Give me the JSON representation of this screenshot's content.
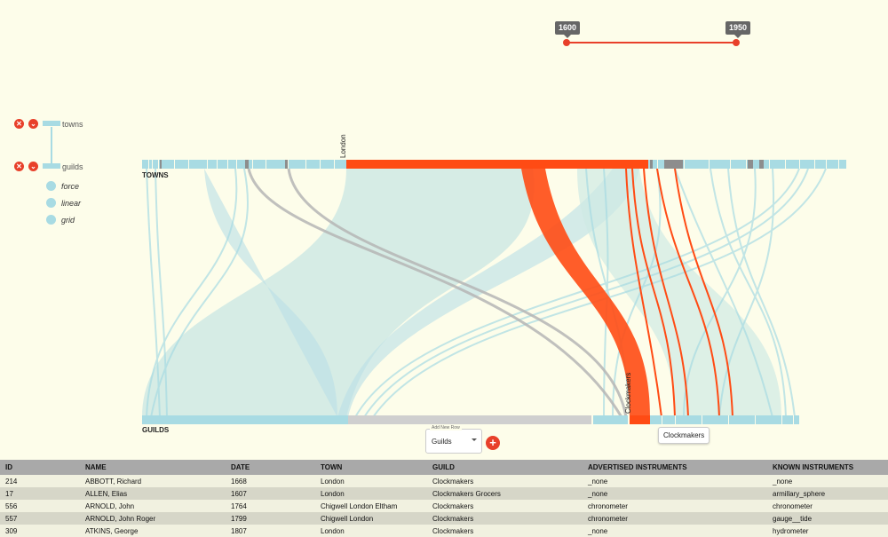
{
  "slider": {
    "min_label": "1600",
    "max_label": "1950",
    "color": "#e8402a"
  },
  "hierarchy": {
    "remove_icon": "close-icon",
    "collapse_icon": "chevron-down-icon",
    "levels": [
      {
        "label": "towns"
      },
      {
        "label": "guilds"
      }
    ],
    "layouts": [
      {
        "label": "force"
      },
      {
        "label": "linear"
      },
      {
        "label": "grid"
      }
    ]
  },
  "axes": {
    "top_label": "TOWNS",
    "bottom_label": "GUILDS",
    "highlight_town": "London",
    "highlight_guild": "Clockmakers"
  },
  "add_row": {
    "legend": "Add New Row",
    "value": "Guilds",
    "button": "+"
  },
  "tooltip": "Clockmakers",
  "colors": {
    "highlight": "#ff4b14",
    "base": "#a8dbe3",
    "ribbon": "#cfe9e4",
    "grey": "#b9b9b9"
  },
  "table": {
    "headers": [
      "ID",
      "NAME",
      "DATE",
      "TOWN",
      "GUILD",
      "ADVERTISED INSTRUMENTS",
      "KNOWN INSTRUMENTS"
    ],
    "rows": [
      [
        "214",
        "ABBOTT, Richard",
        "1668",
        "London",
        "Clockmakers",
        "_none",
        "_none"
      ],
      [
        "17",
        "ALLEN, Elias",
        "1607",
        "London",
        "Clockmakers Grocers",
        "_none",
        "armillary_sphere"
      ],
      [
        "556",
        "ARNOLD, John",
        "1764",
        "Chigwell London Eltham",
        "Clockmakers",
        "chronometer",
        "chronometer"
      ],
      [
        "557",
        "ARNOLD, John Roger",
        "1799",
        "Chigwell London",
        "Clockmakers",
        "chronometer",
        "gauge__tide"
      ],
      [
        "309",
        "ATKINS, George",
        "1807",
        "London",
        "Clockmakers",
        "_none",
        "hydrometer"
      ]
    ]
  }
}
